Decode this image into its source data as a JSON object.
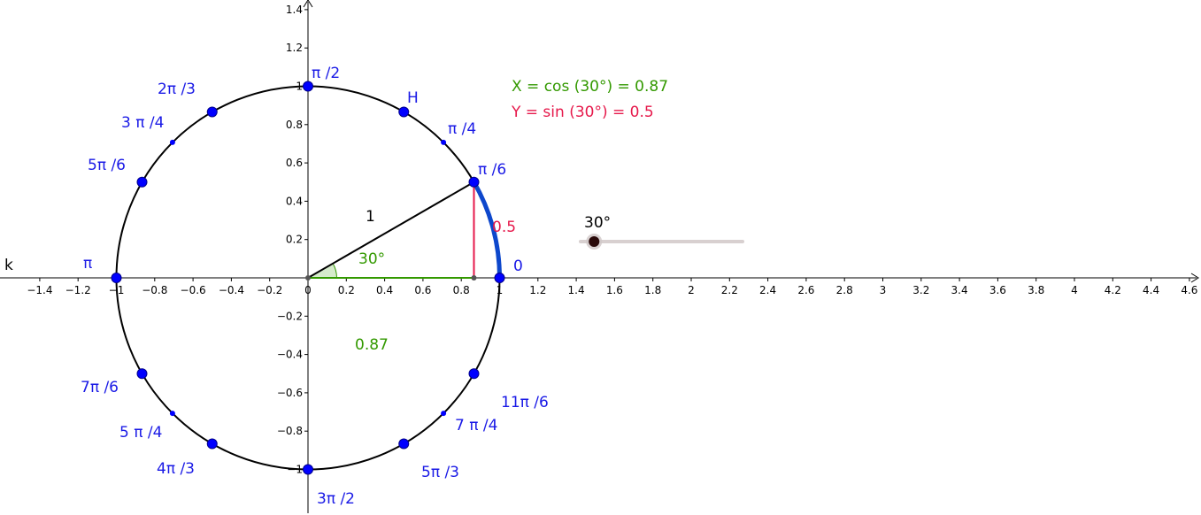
{
  "axes": {
    "x_ticks": [
      "−1.4",
      "−1.2",
      "−1",
      "−0.8",
      "−0.6",
      "−0.4",
      "−0.2",
      "0",
      "0.2",
      "0.4",
      "0.6",
      "0.8",
      "1",
      "1.2",
      "1.4",
      "1.6",
      "1.8",
      "2",
      "2.2",
      "2.4",
      "2.6",
      "2.8",
      "3",
      "3.2",
      "3.4",
      "3.6",
      "3.8",
      "4",
      "4.2",
      "4.4",
      "4.6"
    ],
    "x_tick_values": [
      -1.4,
      -1.2,
      -1,
      -0.8,
      -0.6,
      -0.4,
      -0.2,
      0,
      0.2,
      0.4,
      0.6,
      0.8,
      1,
      1.2,
      1.4,
      1.6,
      1.8,
      2,
      2.2,
      2.4,
      2.6,
      2.8,
      3,
      3.2,
      3.4,
      3.6,
      3.8,
      4,
      4.2,
      4.4,
      4.6
    ],
    "y_ticks": [
      "1.4",
      "1.2",
      "1",
      "0.8",
      "0.6",
      "0.4",
      "0.2",
      "−0.2",
      "−0.4",
      "−0.6",
      "−0.8",
      "−1"
    ],
    "y_tick_values": [
      1.4,
      1.2,
      1,
      0.8,
      0.6,
      0.4,
      0.2,
      -0.2,
      -0.4,
      -0.6,
      -0.8,
      -1
    ],
    "line_label": "k"
  },
  "circle_points": [
    {
      "label": "0",
      "angle_deg": 0
    },
    {
      "label": "π /6",
      "angle_deg": 30
    },
    {
      "label": "π /4",
      "angle_deg": 45,
      "small": true
    },
    {
      "label": "H",
      "angle_deg": 60
    },
    {
      "label": "π /2",
      "angle_deg": 90
    },
    {
      "label": "2π /3",
      "angle_deg": 120
    },
    {
      "label": "3 π /4",
      "angle_deg": 135,
      "small": true
    },
    {
      "label": "5π /6",
      "angle_deg": 150
    },
    {
      "label": "π",
      "angle_deg": 180
    },
    {
      "label": "7π /6",
      "angle_deg": 210
    },
    {
      "label": "5 π /4",
      "angle_deg": 225,
      "small": true
    },
    {
      "label": "4π /3",
      "angle_deg": 240
    },
    {
      "label": "3π /2",
      "angle_deg": 270
    },
    {
      "label": "5π /3",
      "angle_deg": 300
    },
    {
      "label": "7 π /4",
      "angle_deg": 315,
      "small": true
    },
    {
      "label": "11π /6",
      "angle_deg": 330
    }
  ],
  "angle": {
    "degrees": 30,
    "angle_label": "30°",
    "radius_label": "1",
    "sin_label": "0.5",
    "cos_label": "0.87"
  },
  "formulas": {
    "x_text": "X = cos (30°) = 0.87",
    "y_text": "Y = sin (30°) = 0.5"
  },
  "slider": {
    "value_label": "30°",
    "value": 30,
    "min": 0,
    "max": 360
  },
  "colors": {
    "point_blue": "#0000ff",
    "label_blue": "#1a1ae6",
    "cos_green": "#339900",
    "sin_red": "#e6194b",
    "arc_blue": "#0d47cc",
    "slider_track": "#d8d0d0",
    "slider_knob": "#2a0a0a"
  }
}
